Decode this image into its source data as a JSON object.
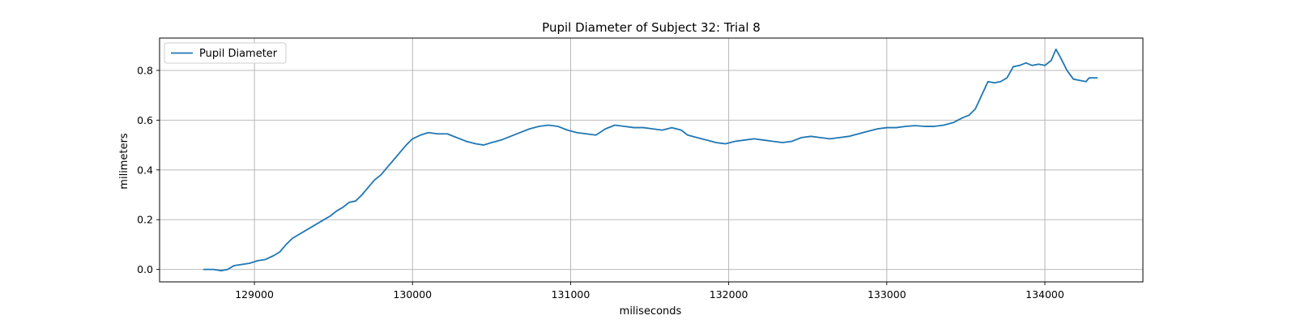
{
  "chart_data": {
    "type": "line",
    "title": "Pupil Diameter of Subject 32: Trial 8",
    "xlabel": "miliseconds",
    "ylabel": "milimeters",
    "xlim": [
      128400,
      134620
    ],
    "ylim": [
      -0.05,
      0.93
    ],
    "x_ticks": [
      129000,
      130000,
      131000,
      132000,
      133000,
      134000
    ],
    "x_tick_labels": [
      "129000",
      "130000",
      "131000",
      "132000",
      "133000",
      "134000"
    ],
    "y_ticks": [
      0.0,
      0.2,
      0.4,
      0.6,
      0.8
    ],
    "y_tick_labels": [
      "0.0",
      "0.2",
      "0.4",
      "0.6",
      "0.8"
    ],
    "grid": true,
    "legend": {
      "position": "top-left",
      "entries": [
        "Pupil Diameter"
      ]
    },
    "series": [
      {
        "name": "Pupil Diameter",
        "color": "#1f77b4",
        "points": [
          [
            128680,
            0.0
          ],
          [
            128740,
            0.0
          ],
          [
            128790,
            -0.005
          ],
          [
            128830,
            0.0
          ],
          [
            128870,
            0.015
          ],
          [
            128920,
            0.02
          ],
          [
            128970,
            0.025
          ],
          [
            129020,
            0.035
          ],
          [
            129070,
            0.04
          ],
          [
            129120,
            0.055
          ],
          [
            129160,
            0.07
          ],
          [
            129200,
            0.1
          ],
          [
            129240,
            0.125
          ],
          [
            129280,
            0.14
          ],
          [
            129320,
            0.155
          ],
          [
            129360,
            0.17
          ],
          [
            129400,
            0.185
          ],
          [
            129440,
            0.2
          ],
          [
            129480,
            0.215
          ],
          [
            129520,
            0.235
          ],
          [
            129560,
            0.25
          ],
          [
            129600,
            0.27
          ],
          [
            129640,
            0.275
          ],
          [
            129680,
            0.3
          ],
          [
            129720,
            0.33
          ],
          [
            129760,
            0.36
          ],
          [
            129800,
            0.38
          ],
          [
            129840,
            0.41
          ],
          [
            129880,
            0.44
          ],
          [
            129920,
            0.47
          ],
          [
            129960,
            0.5
          ],
          [
            130000,
            0.525
          ],
          [
            130050,
            0.54
          ],
          [
            130100,
            0.55
          ],
          [
            130160,
            0.545
          ],
          [
            130220,
            0.545
          ],
          [
            130280,
            0.53
          ],
          [
            130340,
            0.515
          ],
          [
            130400,
            0.505
          ],
          [
            130450,
            0.5
          ],
          [
            130500,
            0.51
          ],
          [
            130560,
            0.52
          ],
          [
            130620,
            0.535
          ],
          [
            130680,
            0.55
          ],
          [
            130740,
            0.565
          ],
          [
            130800,
            0.575
          ],
          [
            130860,
            0.58
          ],
          [
            130920,
            0.575
          ],
          [
            130980,
            0.56
          ],
          [
            131040,
            0.55
          ],
          [
            131100,
            0.545
          ],
          [
            131160,
            0.54
          ],
          [
            131220,
            0.565
          ],
          [
            131280,
            0.58
          ],
          [
            131340,
            0.575
          ],
          [
            131400,
            0.57
          ],
          [
            131460,
            0.57
          ],
          [
            131520,
            0.565
          ],
          [
            131580,
            0.56
          ],
          [
            131640,
            0.57
          ],
          [
            131700,
            0.56
          ],
          [
            131740,
            0.54
          ],
          [
            131800,
            0.53
          ],
          [
            131860,
            0.52
          ],
          [
            131920,
            0.51
          ],
          [
            131980,
            0.505
          ],
          [
            132040,
            0.515
          ],
          [
            132100,
            0.52
          ],
          [
            132160,
            0.525
          ],
          [
            132220,
            0.52
          ],
          [
            132280,
            0.515
          ],
          [
            132340,
            0.51
          ],
          [
            132400,
            0.515
          ],
          [
            132460,
            0.53
          ],
          [
            132520,
            0.535
          ],
          [
            132580,
            0.53
          ],
          [
            132640,
            0.525
          ],
          [
            132700,
            0.53
          ],
          [
            132760,
            0.535
          ],
          [
            132820,
            0.545
          ],
          [
            132880,
            0.555
          ],
          [
            132940,
            0.565
          ],
          [
            133000,
            0.57
          ],
          [
            133060,
            0.57
          ],
          [
            133120,
            0.575
          ],
          [
            133180,
            0.578
          ],
          [
            133240,
            0.575
          ],
          [
            133300,
            0.575
          ],
          [
            133360,
            0.58
          ],
          [
            133420,
            0.59
          ],
          [
            133480,
            0.61
          ],
          [
            133520,
            0.62
          ],
          [
            133560,
            0.645
          ],
          [
            133600,
            0.7
          ],
          [
            133640,
            0.755
          ],
          [
            133680,
            0.75
          ],
          [
            133720,
            0.755
          ],
          [
            133760,
            0.77
          ],
          [
            133800,
            0.815
          ],
          [
            133840,
            0.82
          ],
          [
            133880,
            0.83
          ],
          [
            133920,
            0.82
          ],
          [
            133960,
            0.825
          ],
          [
            134000,
            0.82
          ],
          [
            134040,
            0.84
          ],
          [
            134070,
            0.885
          ],
          [
            134100,
            0.85
          ],
          [
            134140,
            0.8
          ],
          [
            134180,
            0.765
          ],
          [
            134220,
            0.76
          ],
          [
            134260,
            0.755
          ],
          [
            134280,
            0.77
          ],
          [
            134330,
            0.77
          ]
        ]
      }
    ]
  }
}
